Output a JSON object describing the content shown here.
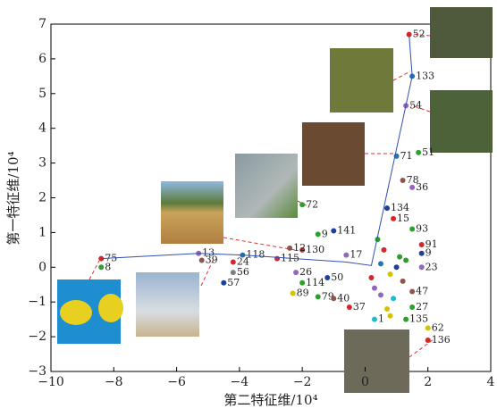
{
  "chart_data": {
    "type": "scatter",
    "x_label": "第二特征维/10⁴",
    "y_label": "第一特征维/10⁴",
    "xlim": [
      -10,
      4
    ],
    "ylim": [
      -3,
      7
    ],
    "xticks": [
      {
        "value": -10,
        "label": "−10"
      },
      {
        "value": -8,
        "label": "−8"
      },
      {
        "value": -6,
        "label": "−6"
      },
      {
        "value": -4,
        "label": "−4"
      },
      {
        "value": -2,
        "label": "−2"
      },
      0,
      2,
      4
    ],
    "yticks": [
      {
        "value": -3,
        "label": "−3"
      },
      {
        "value": -2,
        "label": "−2"
      },
      {
        "value": -1,
        "label": "−1"
      },
      0,
      1,
      2,
      3,
      4,
      5,
      6,
      7
    ],
    "points": {
      "x": [
        1.4,
        1.5,
        1.3,
        1.7,
        1.0,
        1.2,
        1.5,
        0.7,
        0.9,
        1.5,
        -1.0,
        -2.0,
        -1.5,
        -2.0,
        -2.4,
        -0.6,
        -2.8,
        -3.9,
        -4.2,
        -8.4,
        -8.4,
        -4.5,
        -4.2,
        -5.3,
        -5.2,
        -2.2,
        -1.2,
        -1.5,
        -1.0,
        -0.5,
        -2.3,
        -2.0,
        2.0,
        2.0,
        1.3,
        0.3,
        1.8,
        1.8,
        1.8,
        1.5,
        1.5,
        0.5,
        0.8,
        1.1,
        0.3,
        0.6,
        0.9,
        1.2,
        0.4,
        0.7,
        1.0,
        0.2,
        0.5,
        1.3,
        0.8
      ],
      "y": [
        6.7,
        5.5,
        4.65,
        3.3,
        3.2,
        2.5,
        2.3,
        1.7,
        1.4,
        1.1,
        1.05,
        1.8,
        0.95,
        0.5,
        0.55,
        0.35,
        0.25,
        0.35,
        0.15,
        0.25,
        0.0,
        -0.45,
        -0.15,
        0.4,
        0.2,
        -0.15,
        -0.3,
        -0.85,
        -0.9,
        -1.15,
        -0.75,
        -0.45,
        -1.75,
        -2.1,
        -1.5,
        -1.5,
        0.65,
        0.4,
        0.0,
        -1.15,
        -0.7,
        0.1,
        -0.2,
        0.3,
        -0.6,
        0.5,
        -0.9,
        -0.4,
        0.8,
        -1.2,
        0.0,
        -0.3,
        -0.8,
        0.2,
        -1.4
      ],
      "labels": [
        "52",
        "133",
        "54",
        "51",
        "71",
        "78",
        "36",
        "134",
        "15",
        "93",
        "141",
        "72",
        "9",
        "130",
        "12",
        "17",
        "115",
        "118",
        "24",
        "75",
        "8",
        "57",
        "56",
        "13",
        "39",
        "26",
        "50",
        "79",
        "40",
        "37",
        "89",
        "114",
        "62",
        "136",
        "135",
        "1",
        "91",
        "9",
        "23",
        "27",
        "47",
        null,
        null,
        null,
        null,
        null,
        null,
        null,
        null,
        null,
        null,
        null,
        null,
        null,
        null
      ],
      "colors": [
        "#d62728",
        "#1f77b4",
        "#9467bd",
        "#2ca02c",
        "#1f77b4",
        "#8c564b",
        "#9467bd",
        "#1f3f9f",
        "#d62728",
        "#2ca02c",
        "#1f3f9f",
        "#2ca02c",
        "#2ca02c",
        "#d62728",
        "#8c564b",
        "#9467bd",
        "#d62728",
        "#1f77b4",
        "#d62728",
        "#d62728",
        "#2ca02c",
        "#1f3f9f",
        "#7f7f7f",
        "#9467bd",
        "#8c564b",
        "#9467bd",
        "#1f3f9f",
        "#2ca02c",
        "#8c564b",
        "#d62728",
        "#d4c400",
        "#2ca02c",
        "#d4c400",
        "#d62728",
        "#2ca02c",
        "#17becf",
        "#d62728",
        "#1f3f9f",
        "#9467bd",
        "#2ca02c",
        "#8c564b",
        "#1f77b4",
        "#d4c400",
        "#2ca02c",
        "#9467bd",
        "#d62728",
        "#17becf",
        "#8c564b",
        "#2ca02c",
        "#d4c400",
        "#1f3f9f",
        "#d62728",
        "#9467bd",
        "#2ca02c",
        "#d4c400"
      ]
    },
    "path": {
      "color": "#3050b0",
      "x": [
        -8.4,
        -5.3,
        -3.9,
        -0.6,
        0.2,
        1.5,
        1.4
      ],
      "y": [
        0.25,
        0.4,
        0.35,
        0.15,
        0.05,
        5.5,
        6.7
      ]
    }
  }
}
